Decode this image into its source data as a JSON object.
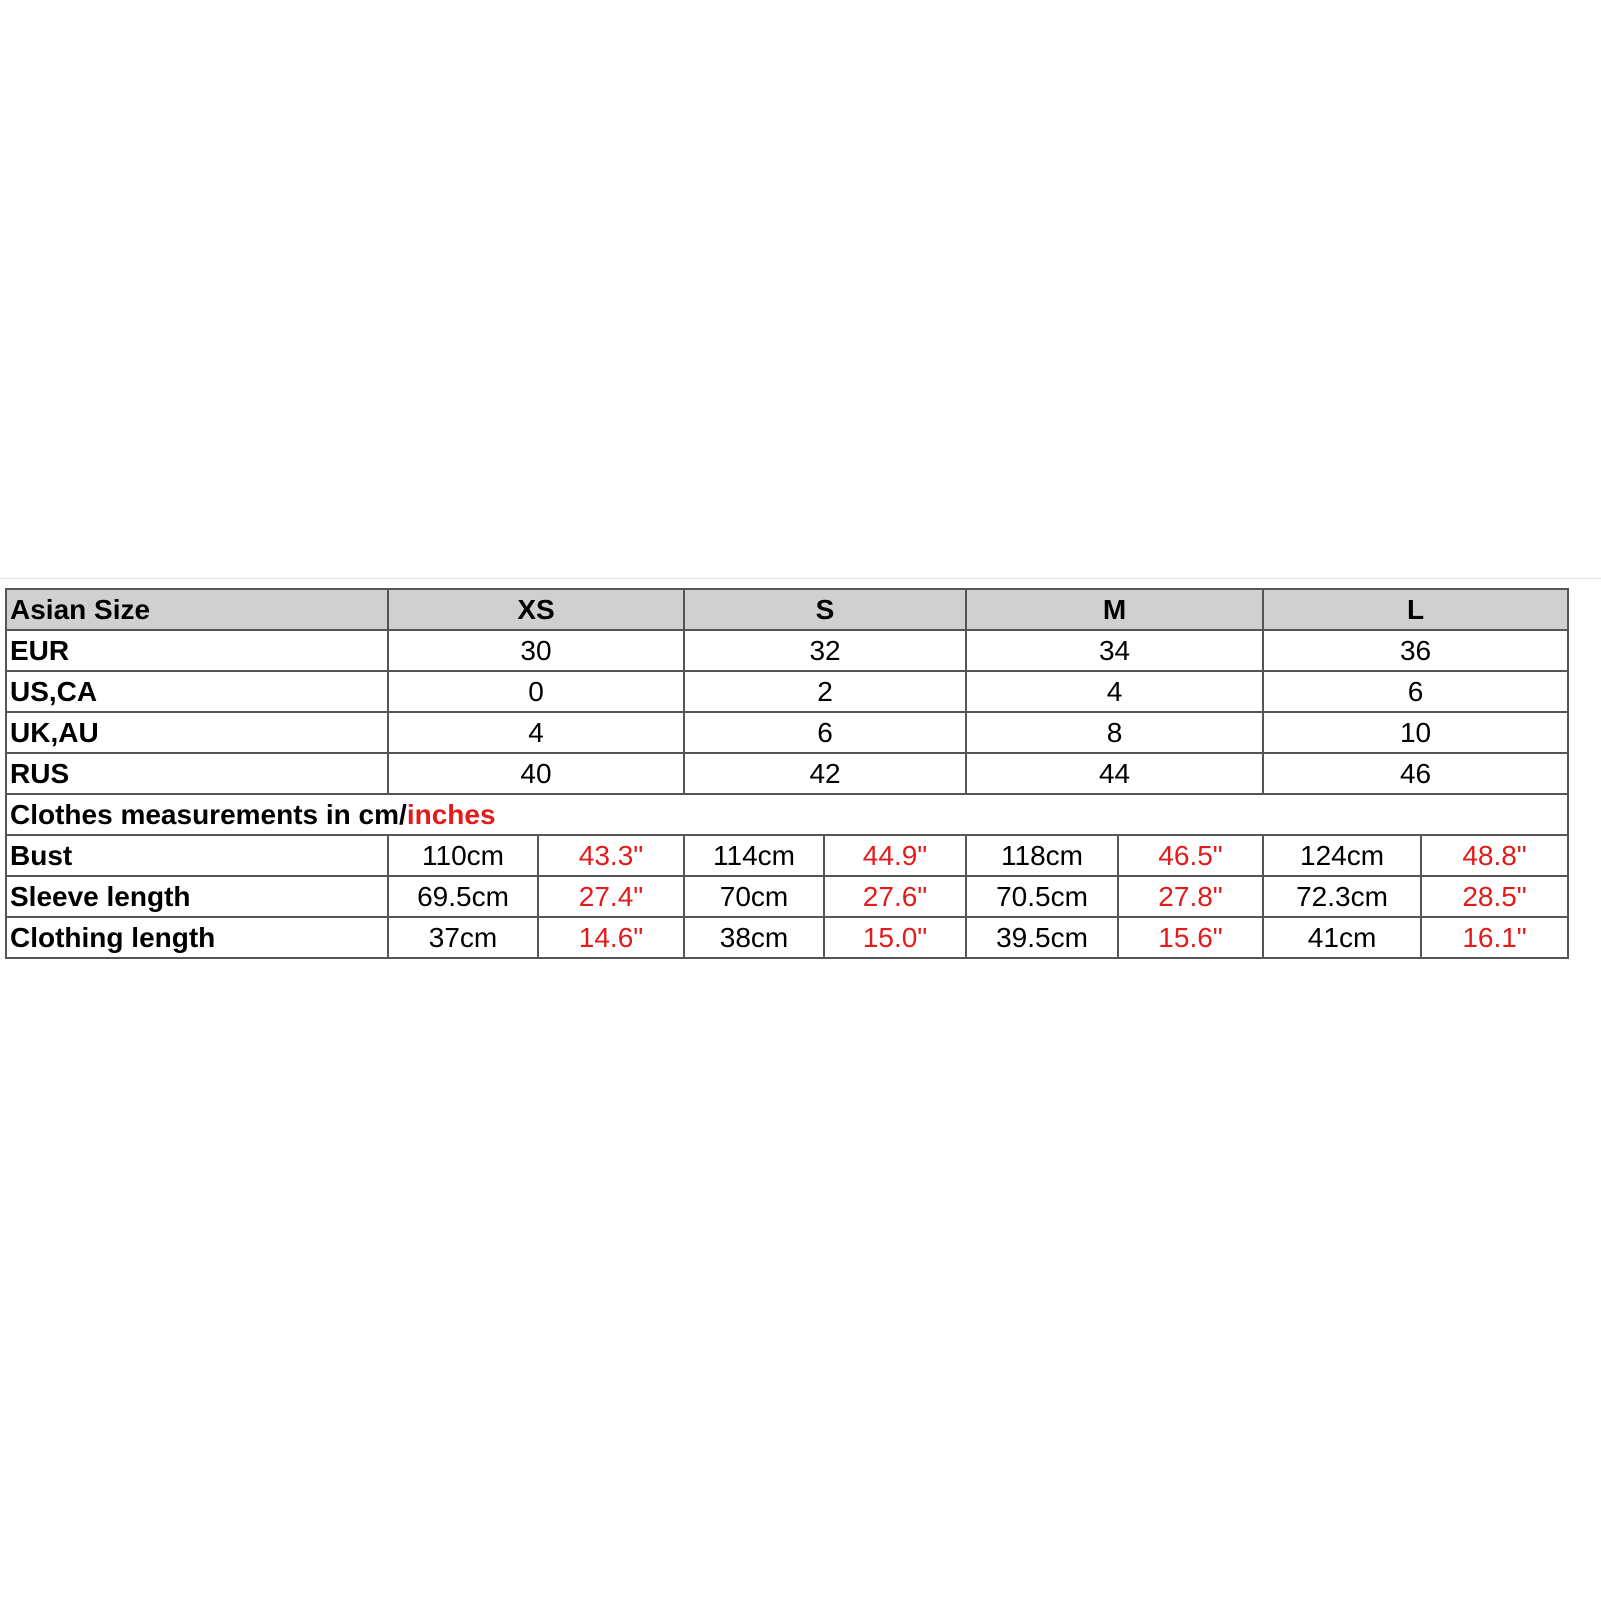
{
  "header": {
    "label": "Asian Size",
    "sizes": [
      "XS",
      "S",
      "M",
      "L"
    ]
  },
  "size_rows": [
    {
      "label": "EUR",
      "values": [
        "30",
        "32",
        "34",
        "36"
      ]
    },
    {
      "label": "US,CA",
      "values": [
        "0",
        "2",
        "4",
        "6"
      ]
    },
    {
      "label": "UK,AU",
      "values": [
        "4",
        "6",
        "8",
        "10"
      ]
    },
    {
      "label": "RUS",
      "values": [
        "40",
        "42",
        "44",
        "46"
      ]
    }
  ],
  "measurements_heading": {
    "prefix": "Clothes measurements in cm/",
    "highlight": "inches"
  },
  "measurement_rows": [
    {
      "label": "Bust",
      "values": [
        [
          "110cm",
          "43.3\""
        ],
        [
          "114cm",
          "44.9\""
        ],
        [
          "118cm",
          "46.5\""
        ],
        [
          "124cm",
          "48.8\""
        ]
      ]
    },
    {
      "label": "Sleeve length",
      "values": [
        [
          "69.5cm",
          "27.4\""
        ],
        [
          "70cm",
          "27.6\""
        ],
        [
          "70.5cm",
          "27.8\""
        ],
        [
          "72.3cm",
          "28.5\""
        ]
      ]
    },
    {
      "label": "Clothing length",
      "values": [
        [
          "37cm",
          "14.6\""
        ],
        [
          "38cm",
          "15.0\""
        ],
        [
          "39.5cm",
          "15.6\""
        ],
        [
          "41cm",
          "16.1\""
        ]
      ]
    }
  ],
  "colors": {
    "header_bg": "#d0d0d0",
    "inches_text": "#e31b1b",
    "border": "#555555"
  }
}
